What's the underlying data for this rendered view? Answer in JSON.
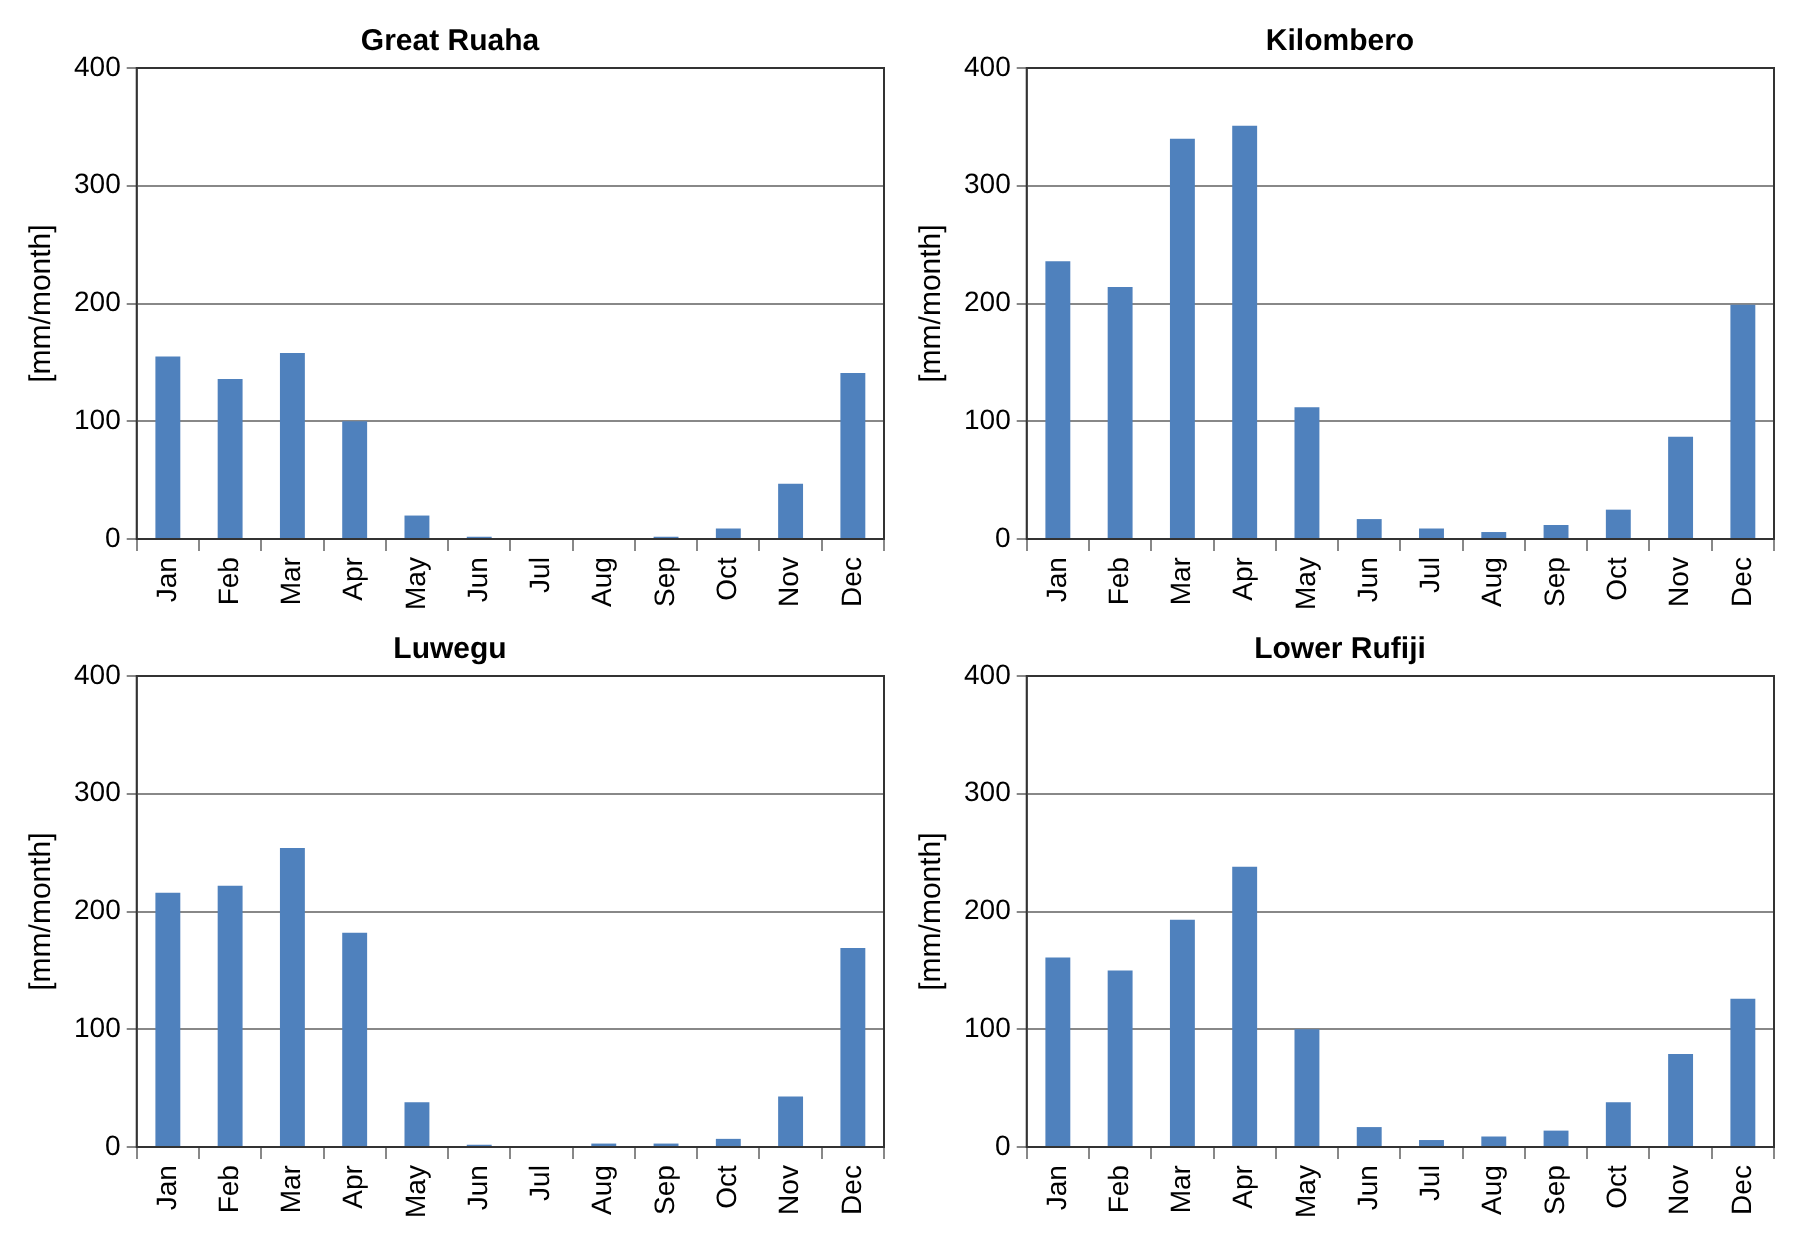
{
  "chart_data": [
    {
      "type": "bar",
      "title": "Great Ruaha",
      "ylabel": "[mm/month]",
      "categories": [
        "Jan",
        "Feb",
        "Mar",
        "Apr",
        "May",
        "Jun",
        "Jul",
        "Aug",
        "Sep",
        "Oct",
        "Nov",
        "Dec"
      ],
      "values": [
        155,
        136,
        158,
        100,
        20,
        2,
        0,
        0,
        2,
        9,
        47,
        141
      ],
      "color": "#4f81bd",
      "ylim": [
        0,
        400
      ],
      "yticks": [
        0,
        100,
        200,
        300,
        400
      ],
      "grid": "y"
    },
    {
      "type": "bar",
      "title": "Kilombero",
      "ylabel": "[mm/month]",
      "categories": [
        "Jan",
        "Feb",
        "Mar",
        "Apr",
        "May",
        "Jun",
        "Jul",
        "Aug",
        "Sep",
        "Oct",
        "Nov",
        "Dec"
      ],
      "values": [
        236,
        214,
        340,
        351,
        112,
        17,
        9,
        6,
        12,
        25,
        87,
        199
      ],
      "color": "#4f81bd",
      "ylim": [
        0,
        400
      ],
      "yticks": [
        0,
        100,
        200,
        300,
        400
      ],
      "grid": "y"
    },
    {
      "type": "bar",
      "title": "Luwegu",
      "ylabel": "[mm/month]",
      "categories": [
        "Jan",
        "Feb",
        "Mar",
        "Apr",
        "May",
        "Jun",
        "Jul",
        "Aug",
        "Sep",
        "Oct",
        "Nov",
        "Dec"
      ],
      "values": [
        216,
        222,
        254,
        182,
        38,
        2,
        0,
        3,
        3,
        7,
        43,
        169
      ],
      "color": "#4f81bd",
      "ylim": [
        0,
        400
      ],
      "yticks": [
        0,
        100,
        200,
        300,
        400
      ],
      "grid": "y"
    },
    {
      "type": "bar",
      "title": "Lower Rufiji",
      "ylabel": "[mm/month]",
      "categories": [
        "Jan",
        "Feb",
        "Mar",
        "Apr",
        "May",
        "Jun",
        "Jul",
        "Aug",
        "Sep",
        "Oct",
        "Nov",
        "Dec"
      ],
      "values": [
        161,
        150,
        193,
        238,
        100,
        17,
        6,
        9,
        14,
        38,
        79,
        126
      ],
      "color": "#4f81bd",
      "ylim": [
        0,
        400
      ],
      "yticks": [
        0,
        100,
        200,
        300,
        400
      ],
      "grid": "y"
    }
  ]
}
